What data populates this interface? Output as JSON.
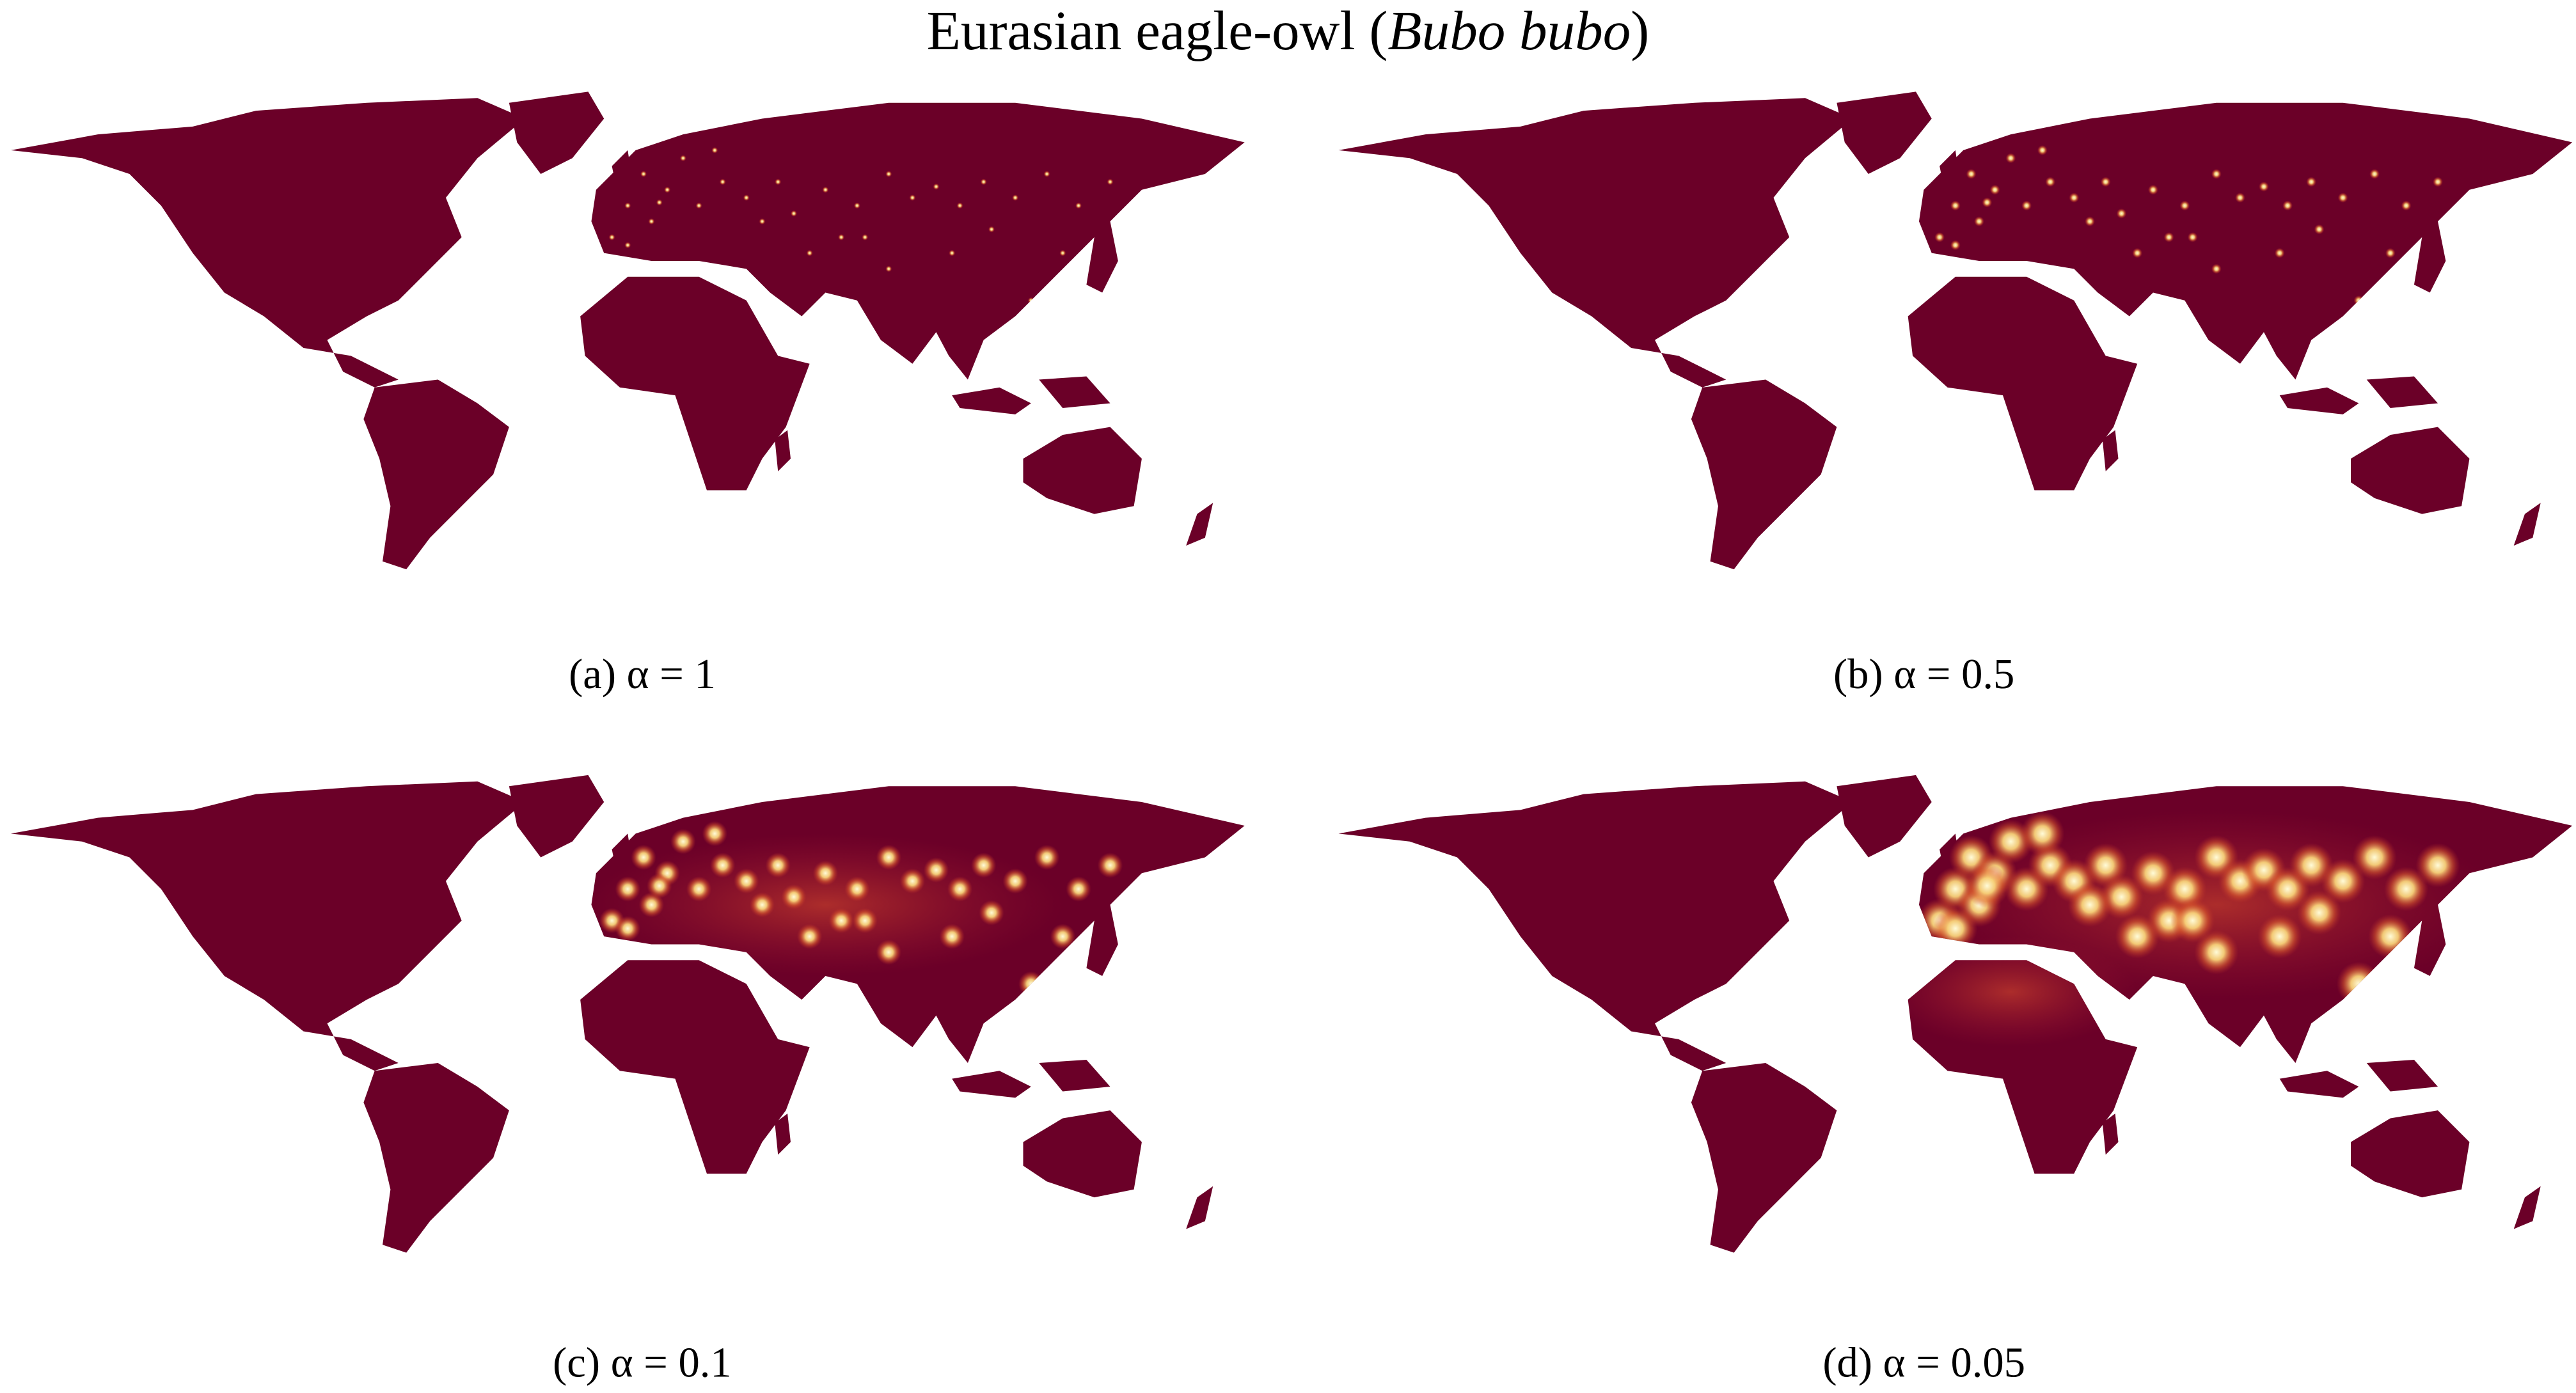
{
  "figure": {
    "title": {
      "name": "Eurasian eagle-owl (",
      "species": "Bubo bubo",
      "close": ")"
    },
    "panels": [
      {
        "caption": "(a) α = 1"
      },
      {
        "caption": "(b) α = 0.5"
      },
      {
        "caption": "(c) α = 0.1"
      },
      {
        "caption": "(d) α = 0.05"
      }
    ]
  }
}
